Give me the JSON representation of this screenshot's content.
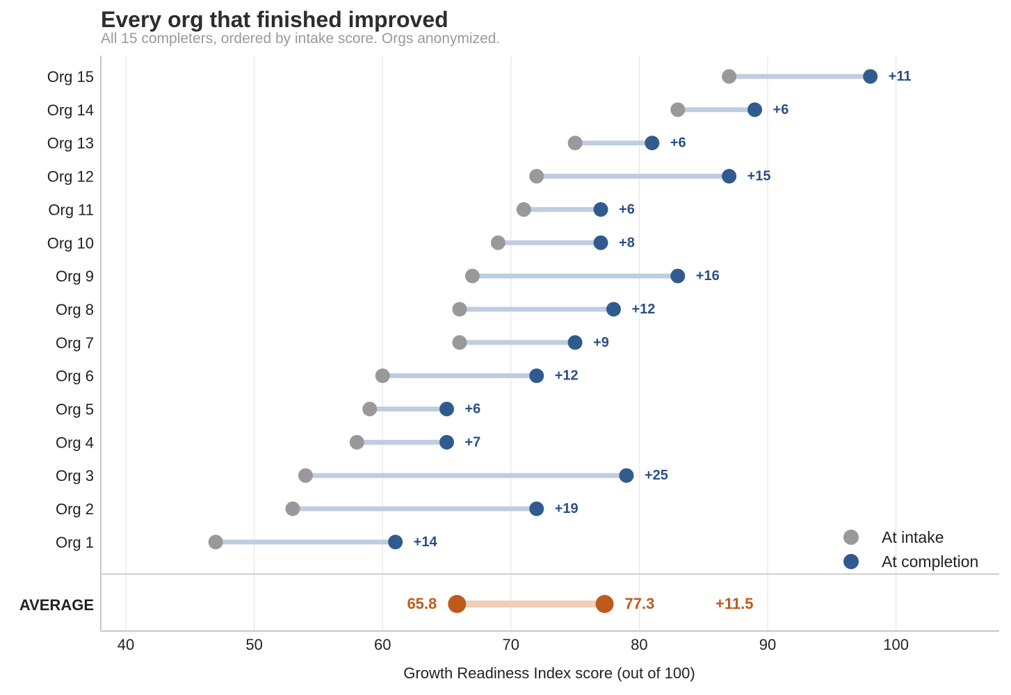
{
  "title": "Every org that finished improved",
  "subtitle": "All 15 completers, ordered by intake score. Orgs anonymized.",
  "chart_data": {
    "type": "dumbbell",
    "xlabel": "Growth Readiness Index score (out of 100)",
    "xlim": [
      38,
      107
    ],
    "xticks": [
      40,
      50,
      60,
      70,
      80,
      90,
      100
    ],
    "grid": "vertical",
    "legend_position": "bottom-right",
    "colors": {
      "intake": "#999999",
      "completion": "#315b8f",
      "connector": "#bfcde0",
      "average": "#c05a1c",
      "average_connector": "#efcfb7",
      "delta_label": "#2b4f85"
    },
    "series": [
      {
        "name": "At intake",
        "key": "intake"
      },
      {
        "name": "At completion",
        "key": "completion"
      }
    ],
    "orgs": [
      {
        "label": "Org 15",
        "intake": 87,
        "completion": 98,
        "delta": "+11"
      },
      {
        "label": "Org 14",
        "intake": 83,
        "completion": 89,
        "delta": "+6"
      },
      {
        "label": "Org 13",
        "intake": 75,
        "completion": 81,
        "delta": "+6"
      },
      {
        "label": "Org 12",
        "intake": 72,
        "completion": 87,
        "delta": "+15"
      },
      {
        "label": "Org 11",
        "intake": 71,
        "completion": 77,
        "delta": "+6"
      },
      {
        "label": "Org 10",
        "intake": 69,
        "completion": 77,
        "delta": "+8"
      },
      {
        "label": "Org 9",
        "intake": 67,
        "completion": 83,
        "delta": "+16"
      },
      {
        "label": "Org 8",
        "intake": 66,
        "completion": 78,
        "delta": "+12"
      },
      {
        "label": "Org 7",
        "intake": 66,
        "completion": 75,
        "delta": "+9"
      },
      {
        "label": "Org 6",
        "intake": 60,
        "completion": 72,
        "delta": "+12"
      },
      {
        "label": "Org 5",
        "intake": 59,
        "completion": 65,
        "delta": "+6"
      },
      {
        "label": "Org 4",
        "intake": 58,
        "completion": 65,
        "delta": "+7"
      },
      {
        "label": "Org 3",
        "intake": 54,
        "completion": 79,
        "delta": "+25"
      },
      {
        "label": "Org 2",
        "intake": 53,
        "completion": 72,
        "delta": "+19"
      },
      {
        "label": "Org 1",
        "intake": 47,
        "completion": 61,
        "delta": "+14"
      }
    ],
    "average": {
      "label": "AVERAGE",
      "intake": 65.8,
      "completion": 77.3,
      "intake_label": "65.8",
      "completion_label": "77.3",
      "delta": "+11.5"
    }
  }
}
